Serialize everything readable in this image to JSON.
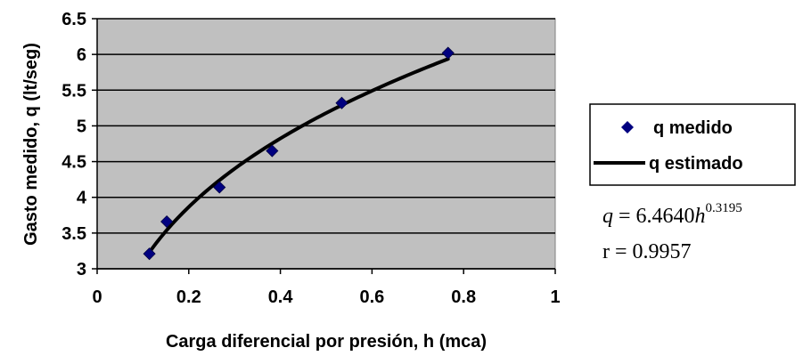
{
  "chart_data": {
    "type": "scatter",
    "xlabel": "Carga diferencial por presión, h (mca)",
    "ylabel": "Gasto medido, q (lt/seg)",
    "xlim": [
      0,
      1
    ],
    "ylim": [
      3,
      6.5
    ],
    "x_ticks": [
      "0",
      "0.2",
      "0.4",
      "0.6",
      "0.8",
      "1"
    ],
    "y_ticks": [
      "3",
      "3.5",
      "4",
      "4.5",
      "5",
      "5.5",
      "6",
      "6.5"
    ],
    "grid": "horizontal",
    "plot_background": "#c0c0c0",
    "legend_position": "right",
    "series": [
      {
        "name": "q medido",
        "kind": "markers",
        "marker": "diamond",
        "color": "#000080",
        "x": [
          0.114,
          0.152,
          0.267,
          0.382,
          0.534,
          0.766
        ],
        "y": [
          3.21,
          3.66,
          4.14,
          4.65,
          5.32,
          6.02
        ]
      },
      {
        "name": "q estimado",
        "kind": "line",
        "color": "#000000",
        "model": {
          "coefficient": 6.464,
          "exponent": 0.3195
        },
        "x_range": [
          0.114,
          0.766
        ]
      }
    ],
    "annotations": {
      "equation_lhs": "q",
      "equation_mid": " = 6.4640",
      "equation_var": "h",
      "equation_exp": "0.3195",
      "r_text": "r = 0.9957"
    }
  }
}
